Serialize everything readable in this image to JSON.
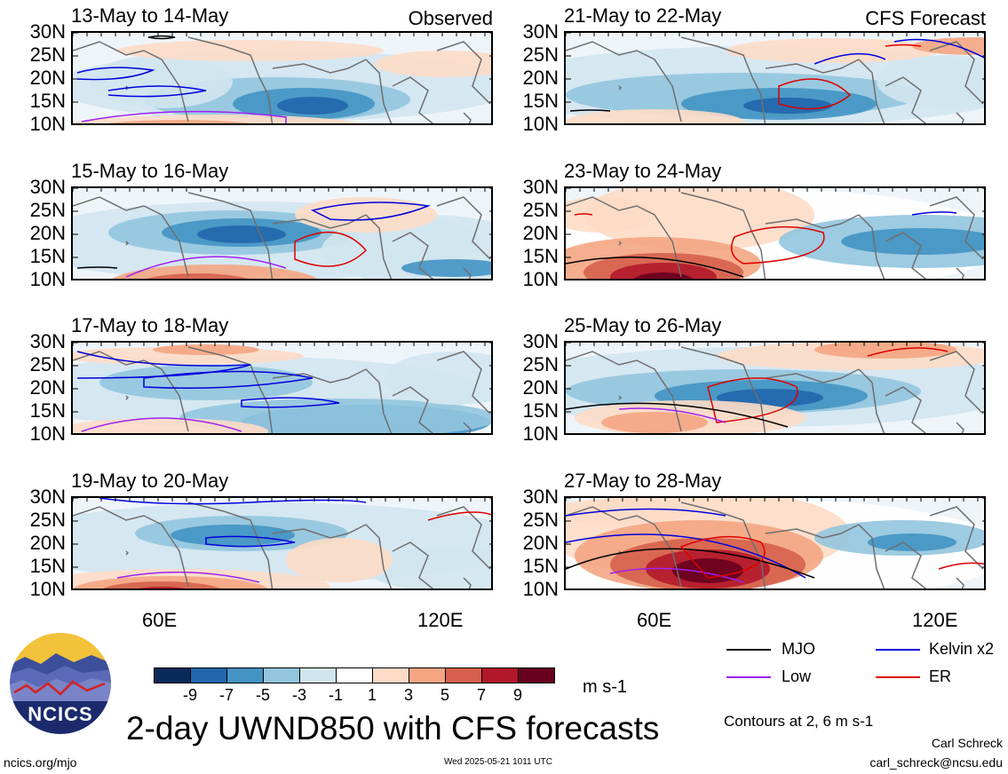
{
  "panels": [
    {
      "title": "13-May to 14-May",
      "label": "Observed",
      "pattern": 0
    },
    {
      "title": "21-May to 22-May",
      "label": "CFS Forecast",
      "pattern": 4
    },
    {
      "title": "15-May to 16-May",
      "label": "",
      "pattern": 1
    },
    {
      "title": "23-May to 24-May",
      "label": "",
      "pattern": 5
    },
    {
      "title": "17-May to 18-May",
      "label": "",
      "pattern": 2
    },
    {
      "title": "25-May to 26-May",
      "label": "",
      "pattern": 6
    },
    {
      "title": "19-May to 20-May",
      "label": "",
      "pattern": 3
    },
    {
      "title": "27-May to 28-May",
      "label": "",
      "pattern": 7
    }
  ],
  "y_ticks": [
    "30N",
    "25N",
    "20N",
    "15N",
    "10N"
  ],
  "x_ticks": [
    "60E",
    "120E"
  ],
  "colorbar": {
    "colors": [
      "#0b2a5c",
      "#2166ac",
      "#4393c3",
      "#92c5de",
      "#d1e5f0",
      "#ffffff",
      "#fddbc7",
      "#f4a582",
      "#d6604d",
      "#b2182b",
      "#67001f"
    ],
    "labels": [
      "-9",
      "-7",
      "-5",
      "-3",
      "-1",
      "1",
      "3",
      "5",
      "7",
      "9"
    ],
    "units": "m s-1"
  },
  "legend": [
    {
      "label": "MJO",
      "color": "#000000"
    },
    {
      "label": "Kelvin x2",
      "color": "#0000dd"
    },
    {
      "label": "Low",
      "color": "#a020f0"
    },
    {
      "label": "ER",
      "color": "#dd0000"
    }
  ],
  "contour_note": "Contours at 2, 6 m s-1",
  "main_title": "2-day UWND850 with CFS forecasts",
  "logo_text": "NCICS",
  "footer": {
    "left": "ncics.org/mjo",
    "center": "Wed 2025-05-21 1011 UTC",
    "right_name": "Carl Schreck",
    "right_email": "carl_schreck@ncsu.edu"
  }
}
